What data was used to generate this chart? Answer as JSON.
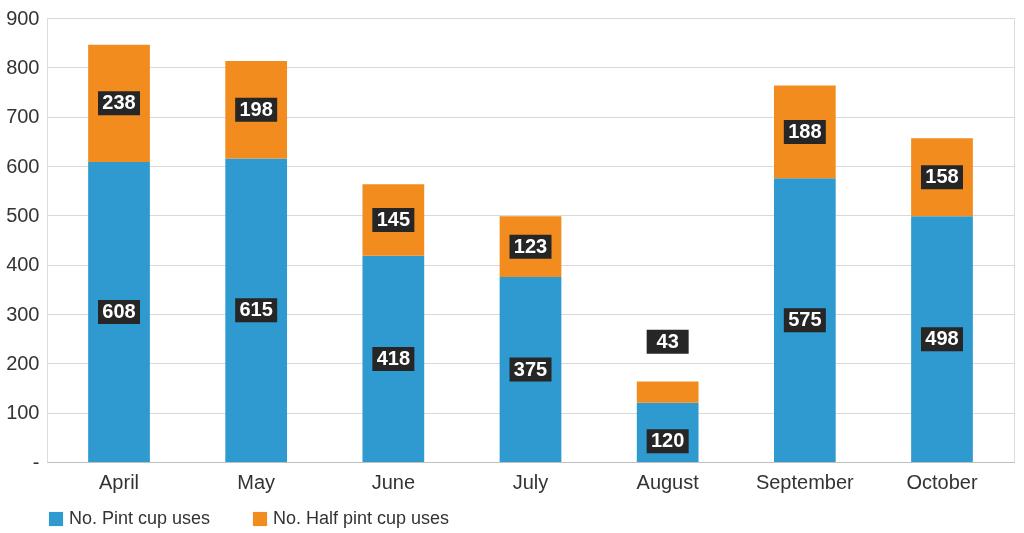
{
  "chart_data": {
    "type": "bar",
    "stacked": true,
    "categories": [
      "April",
      "May",
      "June",
      "July",
      "August",
      "September",
      "October"
    ],
    "series": [
      {
        "name": "No. Pint cup uses",
        "color": "#2e9ad0",
        "values": [
          608,
          615,
          418,
          375,
          120,
          575,
          498
        ]
      },
      {
        "name": "No. Half pint cup uses",
        "color": "#f28c1e",
        "values": [
          238,
          198,
          145,
          123,
          43,
          188,
          158
        ]
      }
    ],
    "ylim": [
      0,
      900
    ],
    "yticks": [
      {
        "value": 0,
        "label": "-"
      },
      100,
      200,
      300,
      400,
      500,
      600,
      700,
      800,
      900
    ],
    "grid": "y",
    "legend": "bottom",
    "data_labels": true
  }
}
